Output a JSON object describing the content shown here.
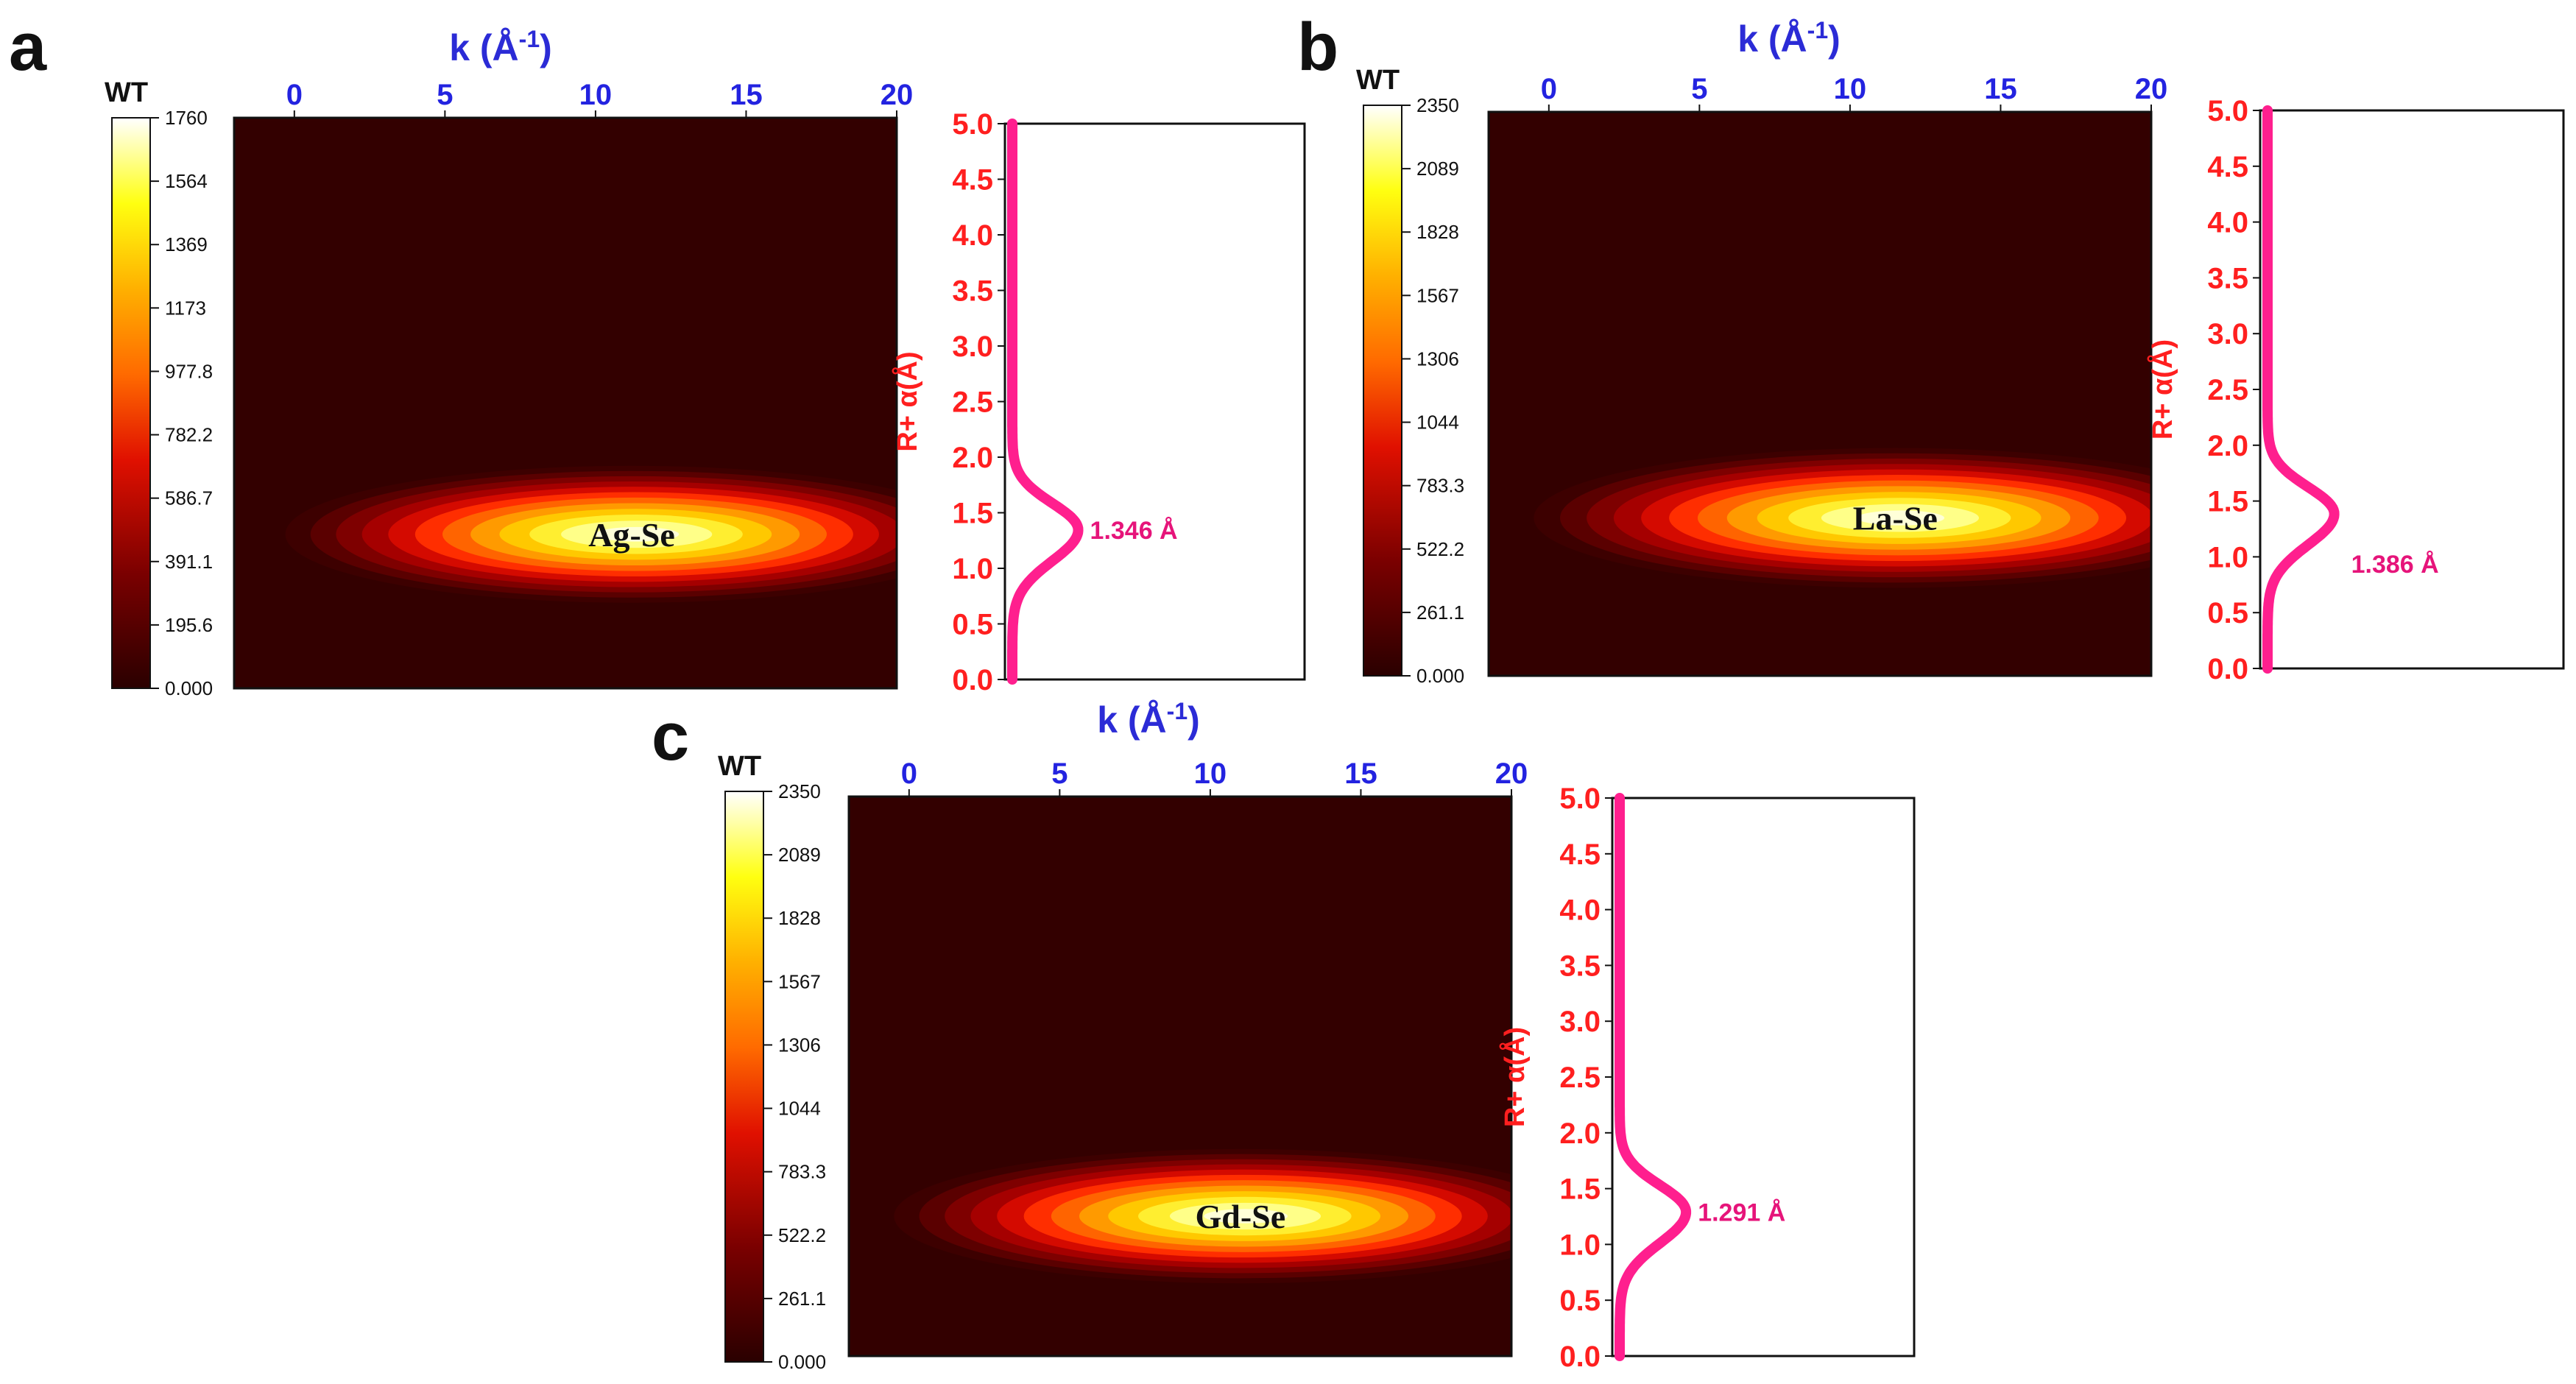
{
  "colors": {
    "background_map": "#330000",
    "curve": "#ff1f8e",
    "k_axis": "#2323e0",
    "r_axis": "#ff1f1f",
    "peak_text": "#e6147a"
  },
  "chart_data": [
    {
      "panel": "a",
      "type": "heatmap",
      "title": "",
      "colorbar_title": "WT",
      "colorbar_ticks": [
        "1760",
        "1564",
        "1369",
        "1173",
        "977.8",
        "782.2",
        "586.7",
        "391.1",
        "195.6",
        "0.000"
      ],
      "colorbar_range": [
        0,
        1760
      ],
      "xlabel": "k (Å⁻¹)",
      "xlabel_main": "k (Å",
      "xlabel_sup": "-1",
      "xlabel_close": ")",
      "xticks": [
        "0",
        "5",
        "10",
        "15",
        "20"
      ],
      "xlim": [
        -2,
        20
      ],
      "blob": {
        "label": "Ag-Se",
        "k_center": 11.2,
        "r_center": 1.35,
        "k_halfwidth": 11.5,
        "r_halfwidth": 0.6,
        "peak_value": 1760
      },
      "profile": {
        "ylabel": "R+ α(Å)",
        "yticks": [
          "5.0",
          "4.5",
          "4.0",
          "3.5",
          "3.0",
          "2.5",
          "2.0",
          "1.5",
          "1.0",
          "0.5",
          "0.0"
        ],
        "ylim": [
          0,
          5
        ],
        "peak_r": 1.346,
        "peak_label": "1.346 Å"
      }
    },
    {
      "panel": "b",
      "type": "heatmap",
      "title": "",
      "colorbar_title": "WT",
      "colorbar_ticks": [
        "2350",
        "2089",
        "1828",
        "1567",
        "1306",
        "1044",
        "783.3",
        "522.2",
        "261.1",
        "0.000"
      ],
      "colorbar_range": [
        0,
        2350
      ],
      "xlabel": "k (Å⁻¹)",
      "xlabel_main": "k (Å",
      "xlabel_sup": "-1",
      "xlabel_close": ")",
      "xticks": [
        "0",
        "5",
        "10",
        "15",
        "20"
      ],
      "xlim": [
        -2,
        20
      ],
      "blob": {
        "label": "La-Se",
        "k_center": 11.5,
        "r_center": 1.4,
        "k_halfwidth": 12,
        "r_halfwidth": 0.62,
        "peak_value": 2350
      },
      "profile": {
        "ylabel": "R+ α(Å)",
        "yticks": [
          "5.0",
          "4.5",
          "4.0",
          "3.5",
          "3.0",
          "2.5",
          "2.0",
          "1.5",
          "1.0",
          "0.5",
          "0.0"
        ],
        "ylim": [
          0,
          5
        ],
        "peak_r": 1.386,
        "peak_label": "1.386 Å"
      }
    },
    {
      "panel": "c",
      "type": "heatmap",
      "title": "",
      "colorbar_title": "WT",
      "colorbar_ticks": [
        "2350",
        "2089",
        "1828",
        "1567",
        "1306",
        "1044",
        "783.3",
        "522.2",
        "261.1",
        "0.000"
      ],
      "colorbar_range": [
        0,
        2350
      ],
      "xlabel": "k (Å⁻¹)",
      "xlabel_main": "k (Å",
      "xlabel_sup": "-1",
      "xlabel_close": ")",
      "xticks": [
        "0",
        "5",
        "10",
        "15",
        "20"
      ],
      "xlim": [
        -2,
        20
      ],
      "blob": {
        "label": "Gd-Se",
        "k_center": 11.0,
        "r_center": 1.25,
        "k_halfwidth": 11.5,
        "r_halfwidth": 0.6,
        "peak_value": 2350
      },
      "profile": {
        "ylabel": "R+ α(Å)",
        "yticks": [
          "5.0",
          "4.5",
          "4.0",
          "3.5",
          "3.0",
          "2.5",
          "2.0",
          "1.5",
          "1.0",
          "0.5",
          "0.0"
        ],
        "ylim": [
          0,
          5
        ],
        "peak_r": 1.291,
        "peak_label": "1.291 Å"
      }
    }
  ]
}
